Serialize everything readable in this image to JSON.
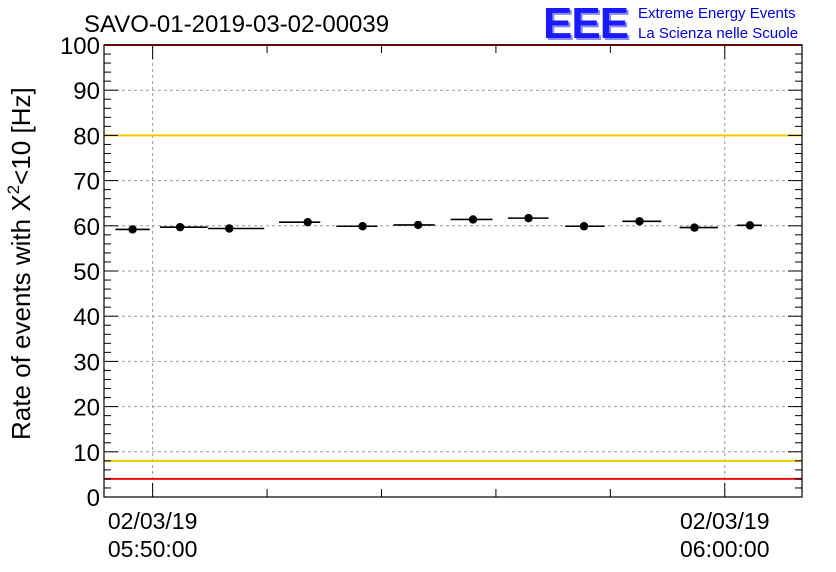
{
  "chart_data": {
    "type": "scatter",
    "title": "SAVO-01-2019-03-02-00039",
    "ylabel": "Rate of events with X²<10 [Hz]",
    "ylabel_parts": {
      "pre": "Rate of events with X",
      "sup": "2",
      "post": "<10 [Hz]"
    },
    "xlabel": "",
    "ylim": [
      0,
      100
    ],
    "yticks": [
      "0",
      "10",
      "20",
      "30",
      "40",
      "50",
      "60",
      "70",
      "80",
      "90",
      "100"
    ],
    "xlim_minutes": [
      -0.85,
      11.35
    ],
    "xtick_labels": [
      {
        "minute": 0,
        "line1": "02/03/19",
        "line2": "05:50:00"
      },
      {
        "minute": 10,
        "line1": "02/03/19",
        "line2": "06:00:00"
      }
    ],
    "grid": true,
    "reference_lines": [
      {
        "y": 100,
        "color": "#ee1111"
      },
      {
        "y": 80,
        "color": "#f0c800"
      },
      {
        "y": 8,
        "color": "#f0c800"
      },
      {
        "y": 4,
        "color": "#ee1111"
      }
    ],
    "bin_width_minutes": 0.87,
    "series": [
      {
        "name": "rate",
        "color": "#000000",
        "x_minutes": [
          -0.35,
          0.48,
          1.34,
          2.71,
          3.67,
          4.64,
          5.6,
          6.57,
          7.54,
          8.51,
          9.47,
          10.44
        ],
        "values": [
          59.2,
          59.7,
          59.4,
          60.8,
          59.9,
          60.2,
          61.4,
          61.7,
          59.9,
          61.0,
          59.6,
          60.1
        ],
        "x_left_minutes": [
          -0.65,
          0.13,
          0.97,
          2.21,
          3.21,
          4.21,
          5.21,
          6.21,
          7.21,
          8.21,
          9.21,
          10.21
        ],
        "x_right_minutes": [
          -0.05,
          0.96,
          1.95,
          2.93,
          3.93,
          4.93,
          5.94,
          6.92,
          7.9,
          8.89,
          9.88,
          10.65
        ]
      }
    ]
  },
  "logo": {
    "letters": "EEE",
    "line1": "Extreme Energy Events",
    "line2": "La Scienza nelle Scuole",
    "color": "#1a1aff"
  }
}
